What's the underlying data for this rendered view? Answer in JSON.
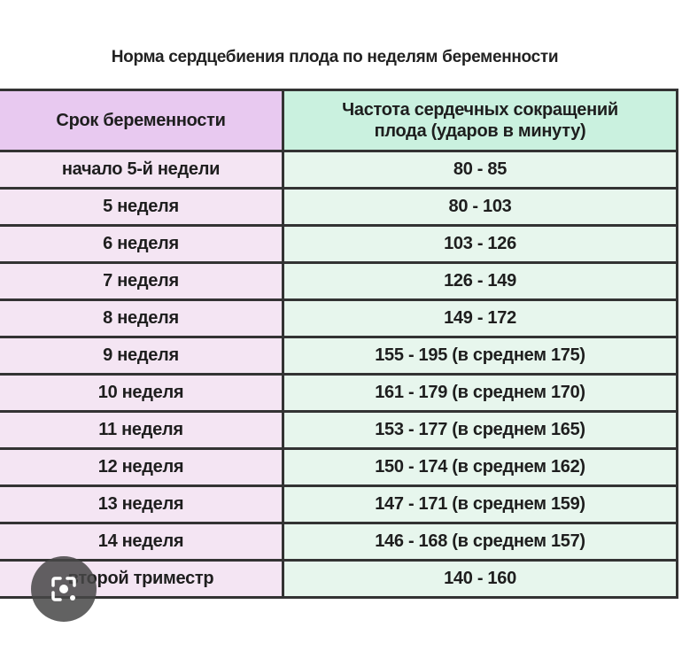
{
  "title": "Норма сердцебиения плода по неделям беременности",
  "table": {
    "headers": [
      "Срок беременности",
      "Частота сердечных сокращений плода (ударов в минуту)"
    ],
    "rows": [
      [
        "начало 5-й недели",
        "80 - 85"
      ],
      [
        "5 неделя",
        "80 - 103"
      ],
      [
        "6 неделя",
        "103 - 126"
      ],
      [
        "7 неделя",
        "126 - 149"
      ],
      [
        "8 неделя",
        "149 - 172"
      ],
      [
        "9 неделя",
        "155 - 195 (в среднем 175)"
      ],
      [
        "10 неделя",
        "161 - 179 (в среднем 170)"
      ],
      [
        "11 неделя",
        "153 - 177 (в среднем 165)"
      ],
      [
        "12 неделя",
        "150 - 174 (в среднем 162)"
      ],
      [
        "13 неделя",
        "147 - 171 (в среднем 159)"
      ],
      [
        "14 неделя",
        "146 - 168 (в среднем 157)"
      ],
      [
        "второй триместр",
        "140 - 160"
      ]
    ]
  },
  "overlay": {
    "icon": "lens-search-icon"
  },
  "colors": {
    "header_left": "#e8c9f0",
    "header_right": "#caf1df",
    "cell_left": "#f4e5f3",
    "cell_right": "#e7f6ed"
  }
}
